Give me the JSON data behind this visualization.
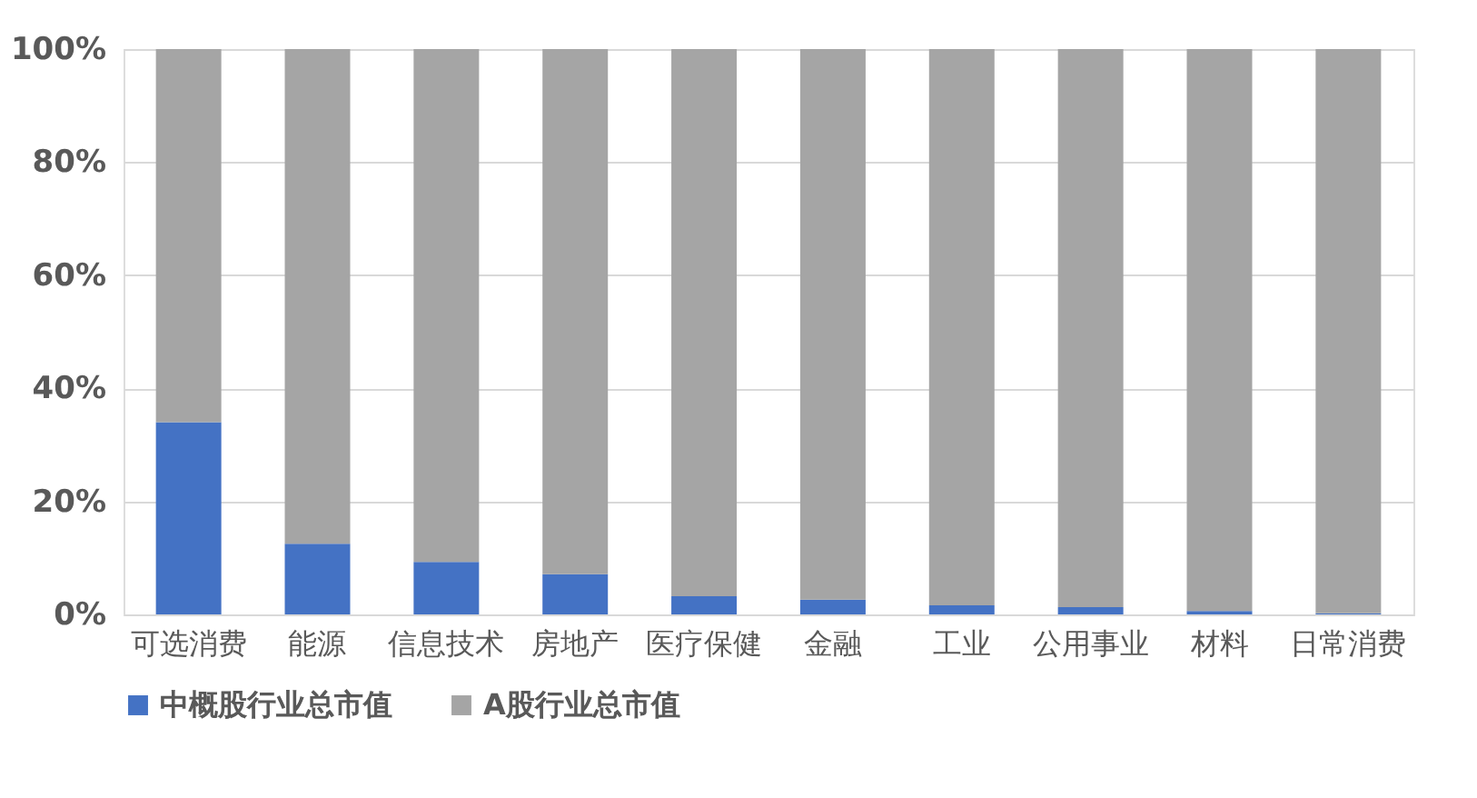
{
  "chart_data": {
    "type": "bar",
    "stacked": true,
    "categories": [
      "可选消费",
      "能源",
      "信息技术",
      "房地产",
      "医疗保健",
      "金融",
      "工业",
      "公用事业",
      "材料",
      "日常消费"
    ],
    "series": [
      {
        "name": "中概股行业总市值",
        "color": "#4472c4",
        "values": [
          34,
          12.5,
          9.3,
          7.1,
          3.2,
          2.6,
          1.6,
          1.3,
          0.6,
          0.2
        ]
      },
      {
        "name": "A股行业总市值",
        "color": "#a5a5a5",
        "values": [
          66,
          87.5,
          90.7,
          92.9,
          96.8,
          97.4,
          98.4,
          98.7,
          99.4,
          99.8
        ]
      }
    ],
    "ylim": [
      0,
      100
    ],
    "yticks": [
      {
        "value": 0,
        "label": "0%"
      },
      {
        "value": 20,
        "label": "20%"
      },
      {
        "value": 40,
        "label": "40%"
      },
      {
        "value": 60,
        "label": "60%"
      },
      {
        "value": 80,
        "label": "80%"
      },
      {
        "value": 100,
        "label": "100%"
      }
    ],
    "grid": "y",
    "legend": "bottom"
  }
}
